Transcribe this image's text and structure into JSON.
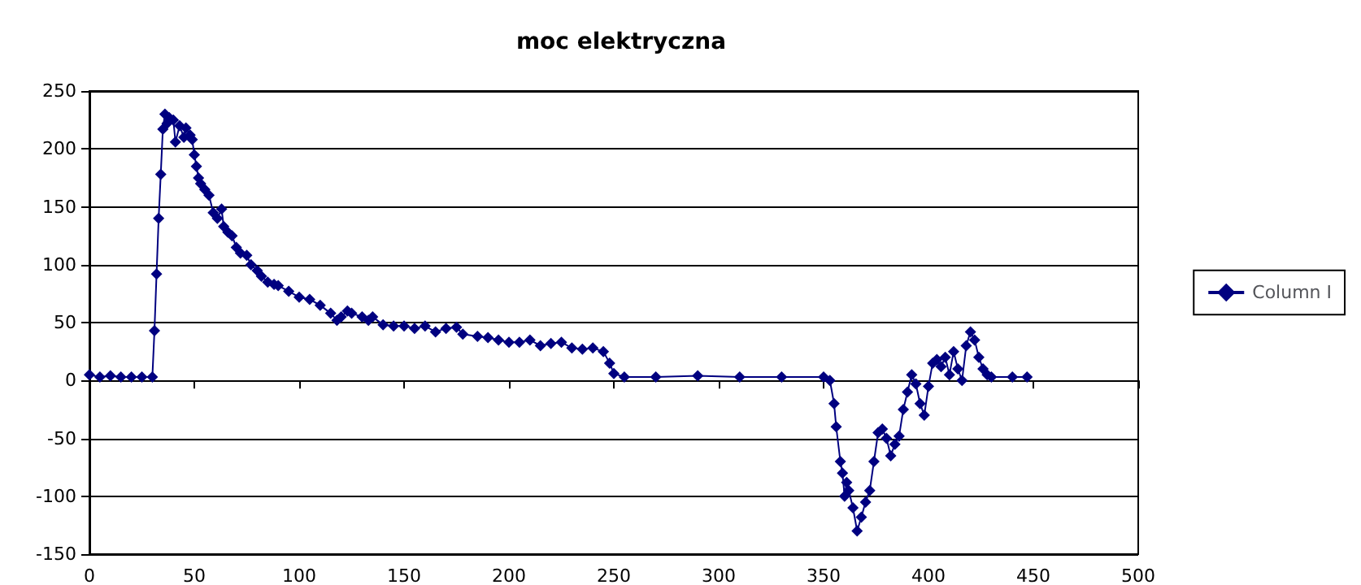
{
  "chart_data": {
    "type": "line",
    "title": "moc elektryczna",
    "xlim": [
      0,
      500
    ],
    "xticks": [
      0,
      50,
      100,
      150,
      200,
      250,
      300,
      350,
      400,
      450,
      500
    ],
    "ylim": [
      -150,
      250
    ],
    "yticks": [
      -150,
      -100,
      -50,
      0,
      50,
      100,
      150,
      200,
      250
    ],
    "grid": "y",
    "legend": "right",
    "marker": "diamond",
    "line_style": "solid",
    "series": [
      {
        "name": "Column I",
        "color": "#000080",
        "x": [
          0,
          5,
          10,
          15,
          20,
          25,
          30,
          31,
          32,
          33,
          34,
          35,
          36,
          37,
          38,
          40,
          41,
          43,
          45,
          46,
          48,
          49,
          50,
          51,
          52,
          53,
          55,
          57,
          59,
          61,
          63,
          64,
          66,
          68,
          70,
          72,
          75,
          77,
          80,
          82,
          85,
          88,
          90,
          95,
          100,
          105,
          110,
          115,
          118,
          120,
          123,
          125,
          130,
          133,
          135,
          140,
          145,
          150,
          155,
          160,
          165,
          170,
          175,
          178,
          185,
          190,
          195,
          200,
          205,
          210,
          215,
          220,
          225,
          230,
          235,
          240,
          245,
          248,
          250,
          255,
          270,
          290,
          310,
          330,
          350,
          353,
          355,
          356,
          358,
          359,
          360,
          361,
          362,
          364,
          366,
          368,
          370,
          372,
          374,
          376,
          378,
          380,
          382,
          384,
          386,
          388,
          390,
          392,
          394,
          396,
          398,
          400,
          402,
          404,
          406,
          408,
          410,
          412,
          414,
          416,
          418,
          420,
          422,
          424,
          426,
          428,
          430,
          440,
          447
        ],
        "values": [
          5,
          3,
          4,
          3,
          3,
          3,
          3,
          43,
          92,
          140,
          178,
          217,
          230,
          222,
          227,
          225,
          206,
          220,
          210,
          218,
          212,
          208,
          195,
          185,
          175,
          170,
          165,
          160,
          145,
          140,
          148,
          133,
          128,
          125,
          115,
          110,
          108,
          100,
          95,
          90,
          85,
          83,
          82,
          77,
          72,
          70,
          65,
          58,
          52,
          55,
          60,
          58,
          55,
          52,
          55,
          48,
          47,
          47,
          45,
          47,
          42,
          45,
          46,
          40,
          38,
          37,
          35,
          33,
          33,
          35,
          30,
          32,
          33,
          28,
          27,
          28,
          25,
          15,
          6,
          3,
          3,
          4,
          3,
          3,
          3,
          0,
          -20,
          -40,
          -70,
          -80,
          -100,
          -88,
          -95,
          -110,
          -130,
          -118,
          -105,
          -95,
          -70,
          -45,
          -42,
          -50,
          -65,
          -55,
          -48,
          -25,
          -10,
          5,
          -3,
          -20,
          -30,
          -5,
          15,
          18,
          12,
          20,
          5,
          25,
          10,
          0,
          30,
          42,
          35,
          20,
          10,
          5,
          3,
          3,
          3
        ]
      }
    ]
  }
}
